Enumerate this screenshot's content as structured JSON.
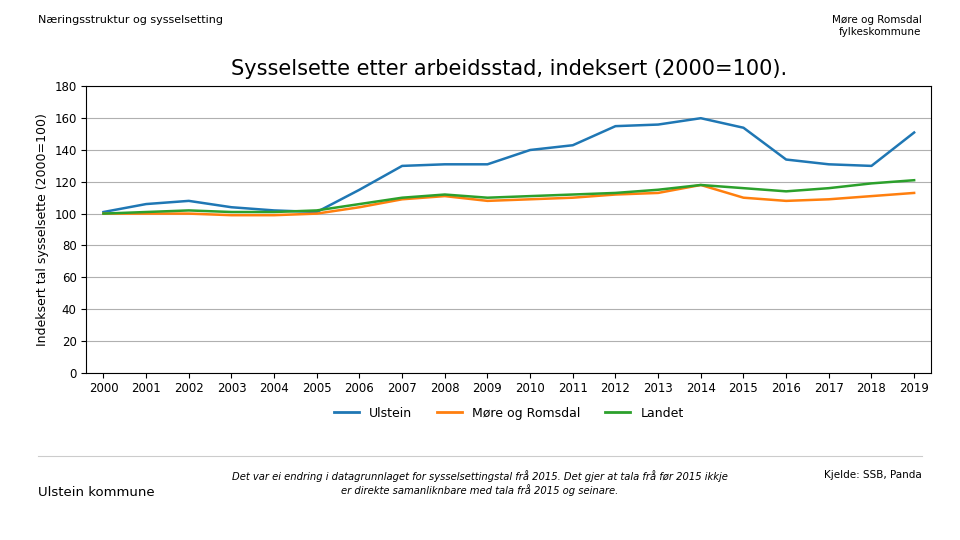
{
  "chart_data": {
    "type": "line",
    "title": "Sysselsette etter arbeidsstad, indeksert (2000=100).",
    "subtitle": "Næringsstruktur og sysselsetting",
    "y_label": "Indeksert tal sysselsette (2000=100)",
    "x": [
      2000,
      2001,
      2002,
      2003,
      2004,
      2005,
      2006,
      2007,
      2008,
      2009,
      2010,
      2011,
      2012,
      2013,
      2014,
      2015,
      2016,
      2017,
      2018,
      2019
    ],
    "series": [
      {
        "name": "Ulstein",
        "values": [
          101,
          106,
          108,
          104,
          102,
          101,
          115,
          130,
          131,
          131,
          140,
          143,
          155,
          156,
          160,
          154,
          134,
          131,
          130,
          151
        ]
      },
      {
        "name": "Møre og Romsdal",
        "values": [
          100,
          100,
          100,
          99,
          99,
          100,
          104,
          109,
          111,
          108,
          109,
          110,
          112,
          113,
          118,
          110,
          108,
          109,
          111,
          113
        ]
      },
      {
        "name": "Landet",
        "values": [
          100,
          101,
          102,
          101,
          101,
          102,
          106,
          110,
          112,
          110,
          111,
          112,
          113,
          115,
          118,
          116,
          114,
          116,
          119,
          121
        ]
      }
    ],
    "xlim": [
      1999.6,
      2019.4
    ],
    "xticks": [
      2000,
      2001,
      2002,
      2003,
      2004,
      2005,
      2006,
      2007,
      2008,
      2009,
      2010,
      2011,
      2012,
      2013,
      2014,
      2015,
      2016,
      2017,
      2018,
      2019
    ],
    "ylim": [
      0,
      180
    ],
    "yticks": [
      0,
      20,
      40,
      60,
      80,
      100,
      120,
      140,
      160,
      180
    ],
    "grid": "y",
    "legend": "upper center",
    "annotations": [
      "Møre og Romsdal\nfylkeskommune",
      "Det var ei endring i datagrunnlaget for sysselsettingstal frå 2015. Det gjer at tala frå før 2015 ikkje\ner direkte samanliknbare med tala frå 2015 og seinare.",
      "Kjelde: SSB, Panda",
      "Ulstein kommune"
    ]
  }
}
